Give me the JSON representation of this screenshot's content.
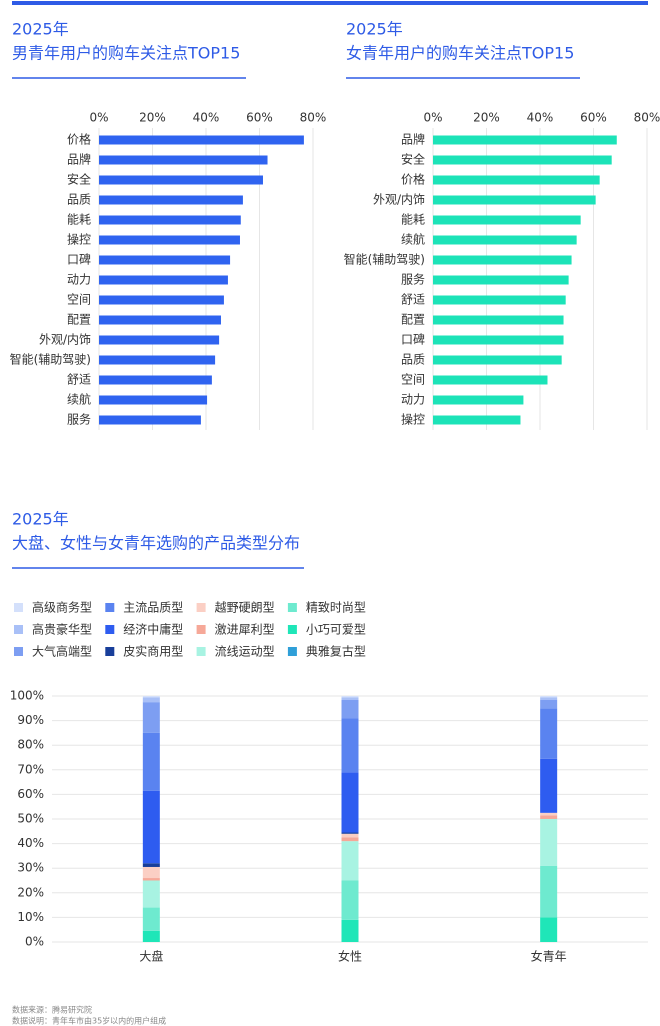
{
  "chart_data": [
    {
      "type": "bar",
      "orientation": "horizontal",
      "title": "2025年",
      "subtitle": "男青年用户的购车关注点TOP15",
      "color": "#2f63f0",
      "categories": [
        "价格",
        "品牌",
        "安全",
        "品质",
        "能耗",
        "操控",
        "口碑",
        "动力",
        "空间",
        "配置",
        "外观/内饰",
        "智能(辅助驾驶)",
        "舒适",
        "续航",
        "服务"
      ],
      "values": [
        76.6,
        63,
        61.3,
        53.8,
        53,
        52.7,
        49,
        48.2,
        46.7,
        45.6,
        44.9,
        43.4,
        42.2,
        40.4,
        38.1
      ],
      "xlim": [
        0,
        80
      ],
      "xticks": [
        {
          "value": 0,
          "label": "0%"
        },
        {
          "value": 20,
          "label": "20%"
        },
        {
          "value": 40,
          "label": "40%"
        },
        {
          "value": 60,
          "label": "60%"
        },
        {
          "value": 80,
          "label": "80%"
        }
      ],
      "grid": true
    },
    {
      "type": "bar",
      "orientation": "horizontal",
      "title": "2025年",
      "subtitle": "女青年用户的购车关注点TOP15",
      "color": "#1ce3b8",
      "categories": [
        "品牌",
        "安全",
        "价格",
        "外观/内饰",
        "能耗",
        "续航",
        "智能(辅助驾驶)",
        "服务",
        "舒适",
        "配置",
        "口碑",
        "品质",
        "空间",
        "动力",
        "操控"
      ],
      "values": [
        68.7,
        66.8,
        62.3,
        60.8,
        55.2,
        53.7,
        51.8,
        50.7,
        49.6,
        48.8,
        48.8,
        48.1,
        42.8,
        33.8,
        32.7
      ],
      "xlim": [
        0,
        80
      ],
      "xticks": [
        {
          "value": 0,
          "label": "0%"
        },
        {
          "value": 20,
          "label": "20%"
        },
        {
          "value": 40,
          "label": "40%"
        },
        {
          "value": 60,
          "label": "60%"
        },
        {
          "value": 80,
          "label": "80%"
        }
      ],
      "grid": true
    },
    {
      "type": "stacked_bar",
      "title": "2025年",
      "subtitle": "大盘、女性与女青年选购的产品类型分布",
      "categories": [
        "大盘",
        "女性",
        "女青年"
      ],
      "series": [
        {
          "name": "高级商务型",
          "color": "#d4e0fb",
          "values": [
            0.5,
            0.5,
            0.5
          ]
        },
        {
          "name": "高贵豪华型",
          "color": "#a9c0f7",
          "values": [
            2,
            1,
            1
          ]
        },
        {
          "name": "大气高端型",
          "color": "#7d9ef2",
          "values": [
            12.5,
            7.5,
            3.5
          ]
        },
        {
          "name": "主流品质型",
          "color": "#5a83f0",
          "values": [
            23.5,
            22,
            20.5
          ]
        },
        {
          "name": "经济中庸型",
          "color": "#2e5cf0",
          "values": [
            29.5,
            24.5,
            22
          ]
        },
        {
          "name": "皮实商用型",
          "color": "#183e9a",
          "values": [
            1.5,
            0.5,
            0
          ]
        },
        {
          "name": "越野硬朗型",
          "color": "#fbcfc4",
          "values": [
            4.5,
            1.5,
            1
          ]
        },
        {
          "name": "激进犀利型",
          "color": "#f6a898",
          "values": [
            1,
            1.5,
            1.5
          ]
        },
        {
          "name": "流线运动型",
          "color": "#a8f3e2",
          "values": [
            11,
            16,
            19
          ]
        },
        {
          "name": "精致时尚型",
          "color": "#6eeacf",
          "values": [
            9.5,
            16,
            21
          ]
        },
        {
          "name": "小巧可爱型",
          "color": "#1fe6b8",
          "values": [
            4.5,
            9,
            10
          ]
        },
        {
          "name": "典雅复古型",
          "color": "#2f9fd8",
          "values": [
            0,
            0,
            0
          ]
        }
      ],
      "ylim": [
        0,
        100
      ],
      "yticks": [
        {
          "value": 0,
          "label": "0%"
        },
        {
          "value": 10,
          "label": "10%"
        },
        {
          "value": 20,
          "label": "20%"
        },
        {
          "value": 30,
          "label": "30%"
        },
        {
          "value": 40,
          "label": "40%"
        },
        {
          "value": 50,
          "label": "50%"
        },
        {
          "value": 60,
          "label": "60%"
        },
        {
          "value": 70,
          "label": "70%"
        },
        {
          "value": 80,
          "label": "80%"
        },
        {
          "value": 90,
          "label": "90%"
        },
        {
          "value": 100,
          "label": "100%"
        }
      ],
      "grid": true
    }
  ],
  "footer": {
    "source": "数据来源：腾易研究院",
    "note": "数据说明：青年车市由35岁以内的用户组成"
  }
}
